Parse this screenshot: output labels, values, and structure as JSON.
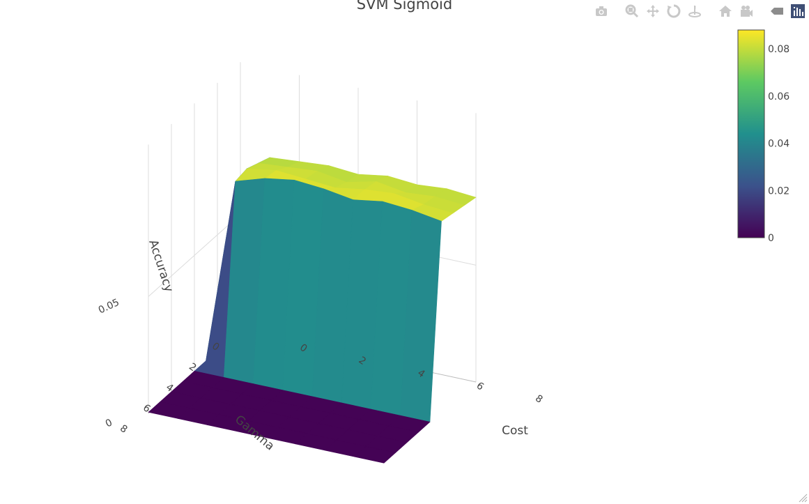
{
  "chart_data": {
    "type": "surface",
    "title": "SVM Sigmoid",
    "xlabel": "Cost",
    "ylabel": "Gamma",
    "zlabel": "Accuracy",
    "x": [
      0,
      1,
      2,
      3,
      4,
      5,
      6,
      7,
      8
    ],
    "y": [
      0,
      1,
      2,
      3,
      4,
      5,
      6,
      7,
      8
    ],
    "z_note_rows_gamma_cols_cost": "",
    "z": [
      [
        0.0005,
        0.077,
        0.078,
        0.079,
        0.078,
        0.08,
        0.079,
        0.08,
        0.079
      ],
      [
        0.003,
        0.079,
        0.08,
        0.081,
        0.079,
        0.082,
        0.08,
        0.081,
        0.08
      ],
      [
        0.0005,
        0.081,
        0.083,
        0.082,
        0.081,
        0.083,
        0.084,
        0.082,
        0.081
      ],
      [
        0.0005,
        0.08,
        0.084,
        0.086,
        0.085,
        0.083,
        0.085,
        0.084,
        0.082
      ],
      [
        0.0005,
        0.0005,
        0.0005,
        0.0005,
        0.0005,
        0.0005,
        0.0005,
        0.0005,
        0.0005
      ],
      [
        0.0005,
        0.0005,
        0.0005,
        0.0005,
        0.0005,
        0.0005,
        0.0005,
        0.0005,
        0.0005
      ],
      [
        0.0005,
        0.0005,
        0.0005,
        0.0005,
        0.0005,
        0.0005,
        0.0005,
        0.0005,
        0.0005
      ],
      [
        0.0005,
        0.0005,
        0.0005,
        0.0005,
        0.0005,
        0.0005,
        0.0005,
        0.0005,
        0.0005
      ],
      [
        0.0005,
        0.0005,
        0.0005,
        0.0005,
        0.0005,
        0.0005,
        0.0005,
        0.0005,
        0.0005
      ]
    ],
    "zlim": [
      0,
      0.088
    ],
    "x_ticks": [
      "0",
      "2",
      "4",
      "6",
      "8"
    ],
    "y_ticks": [
      "0",
      "2",
      "4",
      "6",
      "8"
    ],
    "z_ticks": [
      "0",
      "0.05"
    ],
    "colorscale": "Viridis",
    "colorbar": {
      "ticks": [
        "0",
        "0.02",
        "0.04",
        "0.06",
        "0.08"
      ],
      "tick_values": [
        0,
        0.02,
        0.04,
        0.06,
        0.08
      ],
      "range": [
        0,
        0.088
      ],
      "colors": [
        "#440154",
        "#3b528b",
        "#21908d",
        "#5dc962",
        "#fde725"
      ]
    }
  },
  "modebar": [
    {
      "name": "camera-icon",
      "title": "Download plot as a png"
    },
    {
      "name": "zoom-icon",
      "title": "Zoom"
    },
    {
      "name": "pan-icon",
      "title": "Pan"
    },
    {
      "name": "orbit-icon",
      "title": "Orbital rotation"
    },
    {
      "name": "turntable-icon",
      "title": "Turntable rotation"
    },
    {
      "name": "home-icon",
      "title": "Reset camera to default"
    },
    {
      "name": "video-camera-icon",
      "title": "Reset camera to last save"
    },
    {
      "name": "hover-icon",
      "title": "Toggle show closest data on hover"
    },
    {
      "name": "plotly-logo-icon",
      "title": "Produced with Plotly"
    }
  ]
}
